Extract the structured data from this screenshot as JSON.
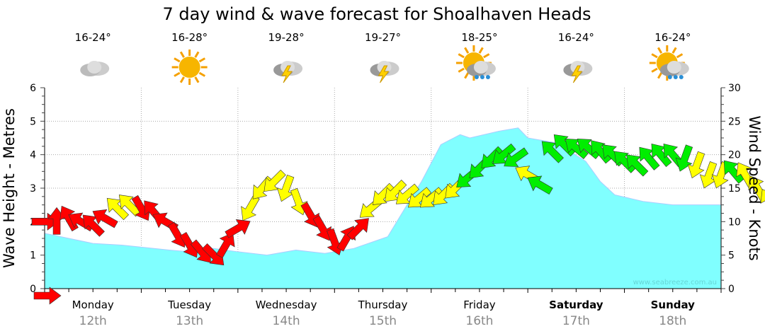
{
  "chart_data": {
    "type": "area",
    "title": "7 day wind & wave forecast for Shoalhaven Heads",
    "ylabel": "Wave Height - Metres",
    "y2label": "Wind Speed - Knots",
    "ylim": [
      0,
      6
    ],
    "y2lim": [
      0,
      30
    ],
    "yticks": [
      "0",
      "1",
      "2",
      "3",
      "4",
      "5",
      "6"
    ],
    "y2ticks": [
      "0",
      "5",
      "10",
      "15",
      "20",
      "25",
      "30"
    ],
    "watermark": "www.seabreeze.com.au",
    "days": [
      {
        "name": "Monday",
        "date": "12th",
        "temp": "16-24°",
        "icon": "cloudy",
        "bold": false
      },
      {
        "name": "Tuesday",
        "date": "13th",
        "temp": "16-28°",
        "icon": "sunny",
        "bold": false
      },
      {
        "name": "Wednesday",
        "date": "14th",
        "temp": "19-28°",
        "icon": "storm",
        "bold": false
      },
      {
        "name": "Thursday",
        "date": "15th",
        "temp": "19-27°",
        "icon": "storm",
        "bold": false
      },
      {
        "name": "Friday",
        "date": "16th",
        "temp": "18-25°",
        "icon": "sun-rain",
        "bold": false
      },
      {
        "name": "Saturday",
        "date": "17th",
        "temp": "16-24°",
        "icon": "storm",
        "bold": true
      },
      {
        "name": "Sunday",
        "date": "18th",
        "temp": "16-24°",
        "icon": "sun-rain",
        "bold": true
      }
    ],
    "wave_height": {
      "days": [
        0,
        0.5,
        0.8,
        1.3,
        1.5,
        1.75,
        2.0,
        2.3,
        2.6,
        2.9,
        3.2,
        3.4,
        3.55,
        3.75,
        3.9,
        4.1,
        4.3,
        4.4,
        4.7,
        4.9,
        5.0,
        5.3,
        5.6,
        5.75,
        5.9,
        6.2,
        6.5,
        7.0
      ],
      "metres": [
        1.65,
        1.35,
        1.3,
        1.15,
        1.1,
        1.2,
        1.1,
        1.0,
        1.15,
        1.05,
        1.2,
        1.4,
        1.55,
        2.5,
        3.2,
        4.3,
        4.6,
        4.5,
        4.7,
        4.8,
        4.5,
        4.35,
        3.8,
        3.2,
        2.8,
        2.6,
        2.5,
        2.5
      ]
    },
    "wind": {
      "step_hours": 3,
      "knots": [
        10,
        10,
        10.5,
        10,
        9.5,
        10.5,
        12,
        12.5,
        12,
        11.5,
        10,
        8,
        6.5,
        5.5,
        5,
        6.5,
        9,
        12,
        15,
        16,
        15,
        13,
        11,
        9,
        7,
        7.5,
        9,
        12,
        14,
        14.5,
        14,
        13.5,
        13.5,
        14,
        15,
        16.5,
        18,
        19.5,
        20,
        19.5,
        17,
        15.5,
        20.5,
        21.5,
        21,
        21,
        20.5,
        20,
        19,
        18.5,
        19.5,
        20,
        20,
        19.5,
        18.5,
        17,
        17,
        17.5,
        17,
        15,
        13
      ],
      "direction_deg": [
        90,
        0,
        330,
        300,
        315,
        300,
        315,
        315,
        150,
        320,
        300,
        150,
        150,
        140,
        135,
        30,
        60,
        210,
        220,
        225,
        200,
        160,
        150,
        150,
        160,
        30,
        45,
        230,
        225,
        225,
        230,
        230,
        230,
        225,
        225,
        230,
        225,
        225,
        230,
        235,
        300,
        300,
        315,
        315,
        310,
        310,
        320,
        315,
        315,
        315,
        320,
        320,
        320,
        200,
        200,
        200,
        200,
        320,
        330,
        330,
        330
      ],
      "colour": [
        "red",
        "red",
        "red",
        "red",
        "red",
        "red",
        "yellow",
        "yellow",
        "red",
        "red",
        "red",
        "red",
        "red",
        "red",
        "red",
        "red",
        "red",
        "yellow",
        "yellow",
        "yellow",
        "yellow",
        "yellow",
        "red",
        "red",
        "red",
        "red",
        "red",
        "yellow",
        "yellow",
        "yellow",
        "yellow",
        "yellow",
        "yellow",
        "yellow",
        "yellow",
        "green",
        "green",
        "green",
        "green",
        "green",
        "yellow",
        "green",
        "green",
        "green",
        "green",
        "green",
        "green",
        "green",
        "green",
        "green",
        "green",
        "green",
        "green",
        "green",
        "yellow",
        "yellow",
        "yellow",
        "green",
        "yellow",
        "yellow",
        "yellow"
      ]
    }
  },
  "colors": {
    "red": "#ff0000",
    "yellow": "#ffff00",
    "green": "#00ee00",
    "wave": "#80ffff"
  }
}
